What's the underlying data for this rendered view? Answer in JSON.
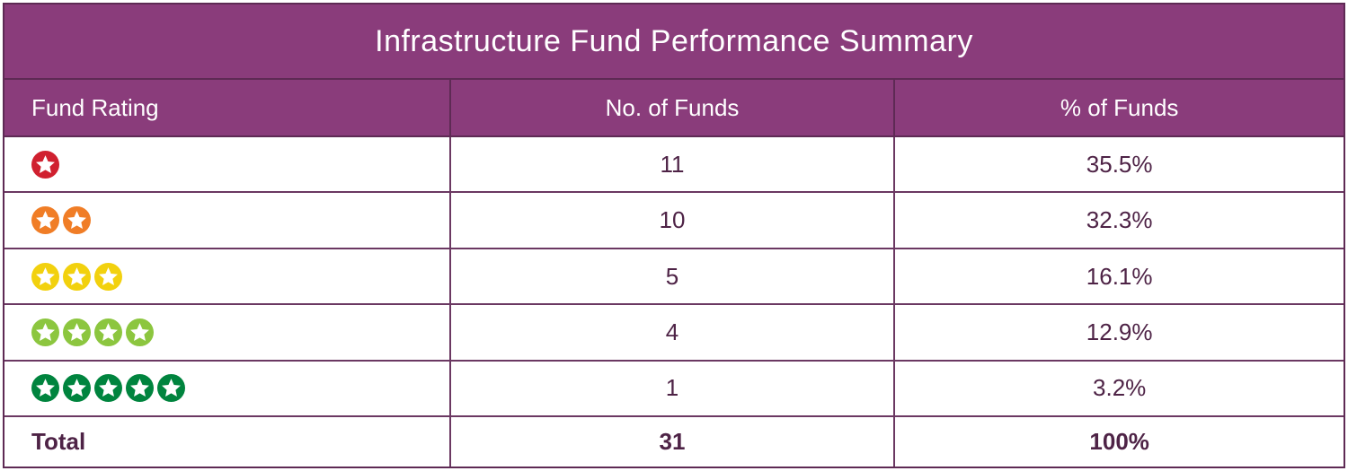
{
  "title": "Infrastructure Fund Performance Summary",
  "columns": {
    "fund_rating": "Fund Rating",
    "no_of_funds": "No. of Funds",
    "pct_of_funds": "% of Funds"
  },
  "rows": [
    {
      "rating": 1,
      "star_color": "#D0202F",
      "funds": "11",
      "pct": "35.5%"
    },
    {
      "rating": 2,
      "star_color": "#F07D26",
      "funds": "10",
      "pct": "32.3%"
    },
    {
      "rating": 3,
      "star_color": "#F2D10E",
      "funds": "5",
      "pct": "16.1%"
    },
    {
      "rating": 4,
      "star_color": "#8CC63F",
      "funds": "4",
      "pct": "12.9%"
    },
    {
      "rating": 5,
      "star_color": "#00843E",
      "funds": "1",
      "pct": "3.2%"
    }
  ],
  "total": {
    "label": "Total",
    "funds": "31",
    "pct": "100%"
  },
  "colors": {
    "header_bg": "#8A3C7B",
    "border_dark": "#5E2A54",
    "row_line": "#6B3862",
    "text_dark": "#4E2346",
    "title_text": "#FFFFFF",
    "star_glyph": "#FFFFFF"
  },
  "chart_data": {
    "type": "table",
    "title": "Infrastructure Fund Performance Summary",
    "categories": [
      "1 star",
      "2 stars",
      "3 stars",
      "4 stars",
      "5 stars"
    ],
    "series": [
      {
        "name": "No. of Funds",
        "values": [
          11,
          10,
          5,
          4,
          1
        ]
      },
      {
        "name": "% of Funds",
        "values": [
          35.5,
          32.3,
          16.1,
          12.9,
          3.2
        ]
      }
    ],
    "total": {
      "no_of_funds": 31,
      "pct_of_funds": 100
    }
  }
}
